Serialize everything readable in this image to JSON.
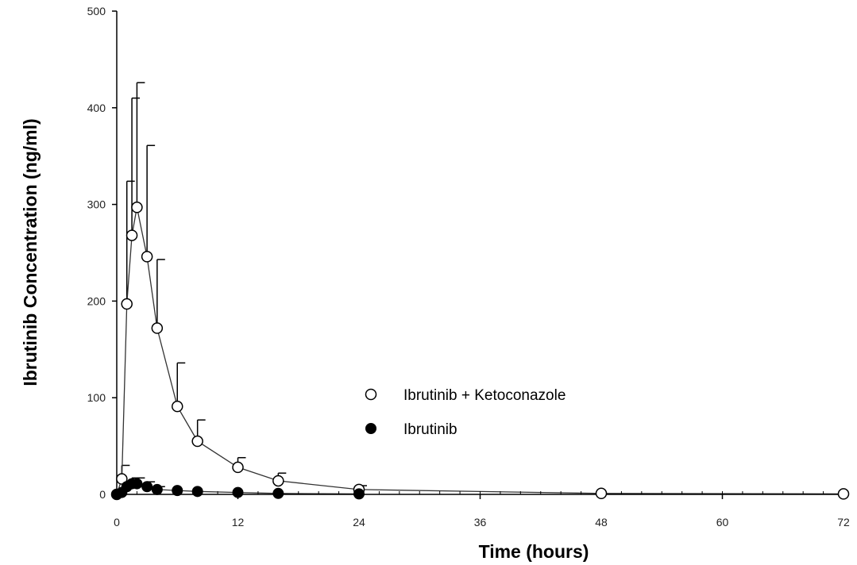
{
  "chart_data": {
    "type": "line",
    "title": "",
    "xlabel": "Time (hours)",
    "ylabel": "Ibrutinib Concentration (ng/ml)",
    "xlim": [
      0,
      72
    ],
    "ylim": [
      0,
      500
    ],
    "xticks": [
      0,
      12,
      24,
      36,
      48,
      60,
      72
    ],
    "xtick_labels": [
      "0",
      "12",
      "24",
      "36",
      "48",
      "60",
      "72"
    ],
    "yticks": [
      0,
      100,
      200,
      300,
      400,
      500
    ],
    "ytick_labels": [
      "0",
      "100",
      "200",
      "300",
      "400",
      "500"
    ],
    "x_minor_tick_step": 2,
    "grid": false,
    "legend_position": "center-right",
    "series": [
      {
        "name": "Ibrutinib + Ketoconazole",
        "marker": "open-circle",
        "color": "#000000",
        "points": [
          {
            "x": 0,
            "y": 0
          },
          {
            "x": 0.5,
            "y": 16,
            "err": 14
          },
          {
            "x": 1,
            "y": 197,
            "err": 127
          },
          {
            "x": 1.5,
            "y": 268,
            "err": 142
          },
          {
            "x": 2,
            "y": 297,
            "err": 129
          },
          {
            "x": 3,
            "y": 246,
            "err": 115
          },
          {
            "x": 4,
            "y": 172,
            "err": 71
          },
          {
            "x": 6,
            "y": 91,
            "err": 45
          },
          {
            "x": 8,
            "y": 55,
            "err": 22
          },
          {
            "x": 12,
            "y": 28,
            "err": 10
          },
          {
            "x": 16,
            "y": 14,
            "err": 8
          },
          {
            "x": 24,
            "y": 5,
            "err": 4
          },
          {
            "x": 48,
            "y": 1
          },
          {
            "x": 72,
            "y": 0.5
          }
        ]
      },
      {
        "name": "Ibrutinib",
        "marker": "filled-circle",
        "color": "#000000",
        "points": [
          {
            "x": 0,
            "y": 0
          },
          {
            "x": 0.5,
            "y": 2
          },
          {
            "x": 1,
            "y": 8,
            "err": 5
          },
          {
            "x": 1.5,
            "y": 11,
            "err": 6
          },
          {
            "x": 2,
            "y": 11,
            "err": 6
          },
          {
            "x": 3,
            "y": 8,
            "err": 5
          },
          {
            "x": 4,
            "y": 5,
            "err": 3
          },
          {
            "x": 6,
            "y": 4
          },
          {
            "x": 8,
            "y": 3
          },
          {
            "x": 12,
            "y": 2
          },
          {
            "x": 16,
            "y": 1
          },
          {
            "x": 24,
            "y": 0.5
          }
        ]
      }
    ]
  }
}
